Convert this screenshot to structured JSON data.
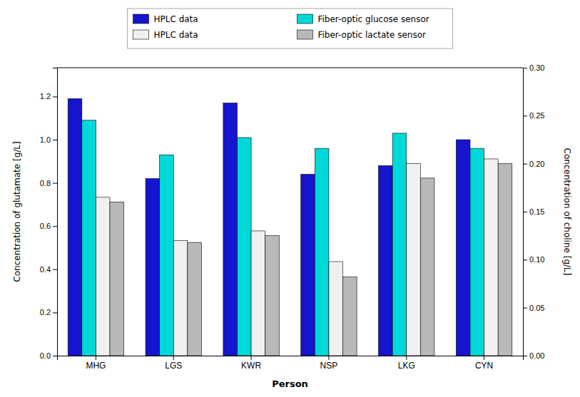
{
  "chart_data": {
    "type": "bar",
    "categories": [
      "MHG",
      "LGS",
      "KWR",
      "NSP",
      "LKG",
      "CYN"
    ],
    "xlabel": "Person",
    "ylabel": "Concentration of glutamate [g/L]",
    "y2label": "Concentration of choline [g/L]",
    "series": [
      {
        "name": "HPLC data",
        "color": "#1515d0",
        "axis": "y",
        "values": [
          1.19,
          0.82,
          1.17,
          0.84,
          0.88,
          1.0
        ]
      },
      {
        "name": "Fiber-optic glucose sensor",
        "color": "#00d8d8",
        "axis": "y",
        "values": [
          1.09,
          0.93,
          1.01,
          0.96,
          1.03,
          0.96
        ]
      },
      {
        "name": "HPLC data",
        "color": "#f0f0f0",
        "axis": "y2",
        "values": [
          0.165,
          0.12,
          0.13,
          0.098,
          0.2,
          0.205
        ]
      },
      {
        "name": "Fiber-optic lactate sensor",
        "color": "#b8b8b8",
        "axis": "y2",
        "values": [
          0.16,
          0.118,
          0.125,
          0.082,
          0.185,
          0.2
        ]
      }
    ],
    "ylim": [
      0.0,
      1.3334
    ],
    "yticks": [
      {
        "value": 0,
        "label": "0.0"
      },
      0.2,
      0.4,
      0.6,
      0.8,
      {
        "value": 1,
        "label": "1.0"
      },
      1.2
    ],
    "y2lim": [
      0.0,
      0.3
    ],
    "y2ticks": [
      {
        "value": 0,
        "label": "0.00"
      },
      {
        "value": 0.05,
        "label": "0.05"
      },
      {
        "value": 0.1,
        "label": "0.10"
      },
      {
        "value": 0.15,
        "label": "0.15"
      },
      {
        "value": 0.2,
        "label": "0.20"
      },
      {
        "value": 0.25,
        "label": "0.25"
      },
      {
        "value": 0.3,
        "label": "0.30"
      }
    ],
    "grid": false,
    "legend": "top"
  }
}
